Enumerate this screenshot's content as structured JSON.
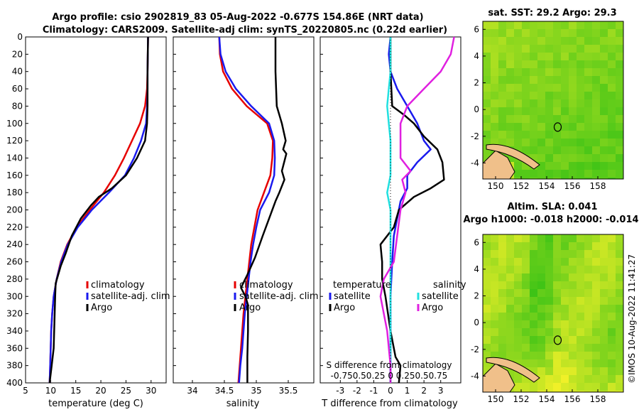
{
  "header": {
    "title_line1": "Argo profile: csio 2902819_83 05-Aug-2022 -0.677S 154.86E (NRT data)",
    "title_line2": "Climatology: CARS2009. Satellite-adj clim: synTS_20220805.nc (0.22d earlier)"
  },
  "timestamp": "©IMOS 10-Aug-2022 11:41:27",
  "colors": {
    "climatology": "#e60000",
    "satellite": "#1a1aee",
    "argo": "#000000",
    "cyan": "#22e0e0",
    "magenta": "#e020e0"
  },
  "chart_data": [
    {
      "type": "line",
      "name": "temperature-profile",
      "xlabel": "temperature (deg C)",
      "ylabel": "",
      "xlim": [
        5,
        33
      ],
      "ylim": [
        400,
        0
      ],
      "xticks": [
        "5",
        "10",
        "15",
        "20",
        "25",
        "30"
      ],
      "yticks": [
        "0",
        "20",
        "40",
        "60",
        "80",
        "100",
        "120",
        "140",
        "160",
        "180",
        "200",
        "220",
        "240",
        "260",
        "280",
        "300",
        "320",
        "340",
        "360",
        "380",
        "400"
      ],
      "legend": [
        "climatology",
        "satellite-adj. clim",
        "Argo"
      ],
      "series": [
        {
          "name": "climatology",
          "color": "#e60000",
          "points": [
            [
              29.4,
              0
            ],
            [
              29.3,
              40
            ],
            [
              29.2,
              60
            ],
            [
              28.8,
              80
            ],
            [
              27.8,
              100
            ],
            [
              26.2,
              120
            ],
            [
              24.6,
              140
            ],
            [
              22.8,
              160
            ],
            [
              20.6,
              180
            ],
            [
              17.8,
              200
            ],
            [
              15.2,
              220
            ],
            [
              13.3,
              240
            ],
            [
              12.0,
              260
            ],
            [
              11.2,
              280
            ],
            [
              10.6,
              300
            ],
            [
              10.3,
              320
            ],
            [
              10.1,
              340
            ],
            [
              10.0,
              360
            ],
            [
              9.9,
              380
            ],
            [
              9.8,
              400
            ]
          ]
        },
        {
          "name": "satellite-adj. clim",
          "color": "#1a1aee",
          "points": [
            [
              29.4,
              0
            ],
            [
              29.3,
              40
            ],
            [
              29.3,
              60
            ],
            [
              29.2,
              80
            ],
            [
              29.0,
              100
            ],
            [
              28.0,
              120
            ],
            [
              26.6,
              140
            ],
            [
              24.8,
              160
            ],
            [
              21.6,
              180
            ],
            [
              18.2,
              200
            ],
            [
              15.4,
              220
            ],
            [
              13.4,
              240
            ],
            [
              12.1,
              260
            ],
            [
              11.2,
              280
            ],
            [
              10.6,
              300
            ],
            [
              10.3,
              320
            ],
            [
              10.1,
              340
            ],
            [
              10.0,
              360
            ],
            [
              9.9,
              380
            ],
            [
              9.8,
              400
            ]
          ]
        },
        {
          "name": "Argo",
          "color": "#000000",
          "points": [
            [
              29.4,
              0
            ],
            [
              29.3,
              40
            ],
            [
              29.3,
              80
            ],
            [
              29.2,
              100
            ],
            [
              28.8,
              120
            ],
            [
              27.2,
              140
            ],
            [
              25.0,
              160
            ],
            [
              22.2,
              175
            ],
            [
              19.6,
              185
            ],
            [
              18.0,
              195
            ],
            [
              16.0,
              210
            ],
            [
              14.2,
              230
            ],
            [
              13.0,
              250
            ],
            [
              12.0,
              265
            ],
            [
              11.0,
              285
            ],
            [
              10.9,
              300
            ],
            [
              10.8,
              320
            ],
            [
              10.7,
              340
            ],
            [
              10.6,
              360
            ],
            [
              10.2,
              380
            ],
            [
              9.8,
              400
            ]
          ]
        }
      ]
    },
    {
      "type": "line",
      "name": "salinity-profile",
      "xlabel": "salinity",
      "xlim": [
        33.7,
        35.9
      ],
      "ylim": [
        400,
        0
      ],
      "xticks": [
        "34",
        "34.5",
        "35",
        "35.5"
      ],
      "legend": [
        "climatology",
        "satellite-adj. clim",
        "Argo"
      ],
      "series": [
        {
          "name": "climatology",
          "color": "#e60000",
          "points": [
            [
              34.42,
              0
            ],
            [
              34.43,
              20
            ],
            [
              34.48,
              40
            ],
            [
              34.62,
              60
            ],
            [
              34.85,
              80
            ],
            [
              35.17,
              100
            ],
            [
              35.26,
              120
            ],
            [
              35.25,
              140
            ],
            [
              35.22,
              160
            ],
            [
              35.12,
              180
            ],
            [
              35.02,
              200
            ],
            [
              34.97,
              220
            ],
            [
              34.92,
              240
            ],
            [
              34.89,
              260
            ],
            [
              34.86,
              280
            ],
            [
              34.83,
              300
            ],
            [
              34.8,
              320
            ],
            [
              34.78,
              340
            ],
            [
              34.76,
              360
            ],
            [
              34.74,
              380
            ],
            [
              34.72,
              400
            ]
          ]
        },
        {
          "name": "satellite-adj. clim",
          "color": "#1a1aee",
          "points": [
            [
              34.42,
              0
            ],
            [
              34.44,
              20
            ],
            [
              34.52,
              40
            ],
            [
              34.68,
              60
            ],
            [
              34.92,
              80
            ],
            [
              35.2,
              100
            ],
            [
              35.28,
              120
            ],
            [
              35.29,
              140
            ],
            [
              35.28,
              160
            ],
            [
              35.2,
              180
            ],
            [
              35.06,
              200
            ],
            [
              35.0,
              220
            ],
            [
              34.95,
              240
            ],
            [
              34.91,
              260
            ],
            [
              34.88,
              280
            ],
            [
              34.85,
              300
            ],
            [
              34.82,
              320
            ],
            [
              34.8,
              340
            ],
            [
              34.78,
              360
            ],
            [
              34.75,
              380
            ],
            [
              34.73,
              400
            ]
          ]
        },
        {
          "name": "Argo",
          "color": "#000000",
          "points": [
            [
              35.3,
              0
            ],
            [
              35.3,
              40
            ],
            [
              35.31,
              60
            ],
            [
              35.32,
              80
            ],
            [
              35.4,
              100
            ],
            [
              35.46,
              120
            ],
            [
              35.42,
              130
            ],
            [
              35.47,
              135
            ],
            [
              35.4,
              155
            ],
            [
              35.44,
              165
            ],
            [
              35.36,
              180
            ],
            [
              35.3,
              190
            ],
            [
              35.2,
              210
            ],
            [
              35.1,
              230
            ],
            [
              34.98,
              255
            ],
            [
              34.86,
              275
            ],
            [
              34.76,
              290
            ],
            [
              34.83,
              300
            ],
            [
              34.87,
              310
            ],
            [
              34.87,
              340
            ],
            [
              34.86,
              370
            ],
            [
              34.86,
              400
            ]
          ]
        }
      ]
    },
    {
      "type": "line",
      "name": "difference-profile",
      "xlabel": "T difference from climatology",
      "annotation_line1": "S difference from climatology",
      "annotation_line2": "-0.750.50.25 0 0.250.50.75",
      "xlim": [
        -4.2,
        4.2
      ],
      "ylim": [
        400,
        0
      ],
      "xticks": [
        "-3",
        "-2",
        "-1",
        "0",
        "1",
        "2",
        "3"
      ],
      "legend_temperature_title": "temperature",
      "legend_salinity_title": "salinity",
      "legend": [
        "satellite",
        "Argo",
        "satellite",
        "Argo"
      ],
      "series": [
        {
          "name": "T satellite",
          "color": "#1a1aee",
          "points": [
            [
              0,
              0
            ],
            [
              -0.1,
              20
            ],
            [
              0,
              40
            ],
            [
              0.4,
              60
            ],
            [
              1.0,
              80
            ],
            [
              1.6,
              100
            ],
            [
              2.0,
              120
            ],
            [
              2.4,
              130
            ],
            [
              1.6,
              145
            ],
            [
              1.0,
              160
            ],
            [
              1.0,
              175
            ],
            [
              0.6,
              190
            ],
            [
              0.4,
              210
            ],
            [
              0.2,
              230
            ],
            [
              0.1,
              260
            ],
            [
              0,
              300
            ],
            [
              0,
              340
            ],
            [
              0,
              400
            ]
          ]
        },
        {
          "name": "T Argo",
          "color": "#000000",
          "points": [
            [
              0,
              0
            ],
            [
              0,
              40
            ],
            [
              0.1,
              80
            ],
            [
              0.8,
              90
            ],
            [
              1.4,
              100
            ],
            [
              2.0,
              115
            ],
            [
              2.8,
              130
            ],
            [
              3.1,
              145
            ],
            [
              3.2,
              165
            ],
            [
              2.4,
              175
            ],
            [
              1.4,
              185
            ],
            [
              0.5,
              200
            ],
            [
              0.2,
              220
            ],
            [
              -0.6,
              240
            ],
            [
              -0.5,
              260
            ],
            [
              -0.5,
              280
            ],
            [
              -0.3,
              300
            ],
            [
              0,
              340
            ],
            [
              0.3,
              370
            ],
            [
              0.6,
              380
            ],
            [
              0.5,
              400
            ]
          ]
        },
        {
          "name": "S satellite",
          "color": "#22e0e0",
          "points": [
            [
              0,
              0
            ],
            [
              0,
              40
            ],
            [
              -0.1,
              60
            ],
            [
              -0.2,
              80
            ],
            [
              -0.1,
              100
            ],
            [
              0,
              120
            ],
            [
              0,
              160
            ],
            [
              -0.2,
              180
            ],
            [
              0,
              200
            ],
            [
              0,
              240
            ],
            [
              0,
              300
            ],
            [
              0,
              340
            ],
            [
              0,
              400
            ]
          ]
        },
        {
          "name": "S Argo",
          "color": "#e020e0",
          "points": [
            [
              3.8,
              0
            ],
            [
              3.6,
              20
            ],
            [
              3.0,
              40
            ],
            [
              2.0,
              60
            ],
            [
              1.0,
              80
            ],
            [
              0.6,
              100
            ],
            [
              0.6,
              120
            ],
            [
              0.6,
              140
            ],
            [
              1.2,
              155
            ],
            [
              0.7,
              165
            ],
            [
              0.9,
              180
            ],
            [
              0.6,
              200
            ],
            [
              0.4,
              230
            ],
            [
              0.2,
              260
            ],
            [
              -0.4,
              280
            ],
            [
              -0.6,
              300
            ],
            [
              -0.2,
              340
            ],
            [
              0,
              380
            ],
            [
              0,
              400
            ]
          ]
        }
      ]
    },
    {
      "type": "heatmap",
      "name": "sst-map",
      "title": "sat. SST: 29.2 Argo: 29.3",
      "xlim": [
        149,
        160
      ],
      "ylim": [
        -5.2,
        6.6
      ],
      "xticks": [
        "150",
        "152",
        "154",
        "156",
        "158"
      ],
      "yticks": [
        "6",
        "4",
        "2",
        "0",
        "-2",
        "-4"
      ]
    },
    {
      "type": "heatmap",
      "name": "sla-map",
      "title_line1": "Altim. SLA: 0.041",
      "title_line2": "Argo h1000: -0.018 h2000: -0.014",
      "xlim": [
        149,
        160
      ],
      "ylim": [
        -5.2,
        6.6
      ],
      "xticks": [
        "150",
        "152",
        "154",
        "156",
        "158"
      ],
      "yticks": [
        "6",
        "4",
        "2",
        "0",
        "-2",
        "-4"
      ]
    }
  ]
}
